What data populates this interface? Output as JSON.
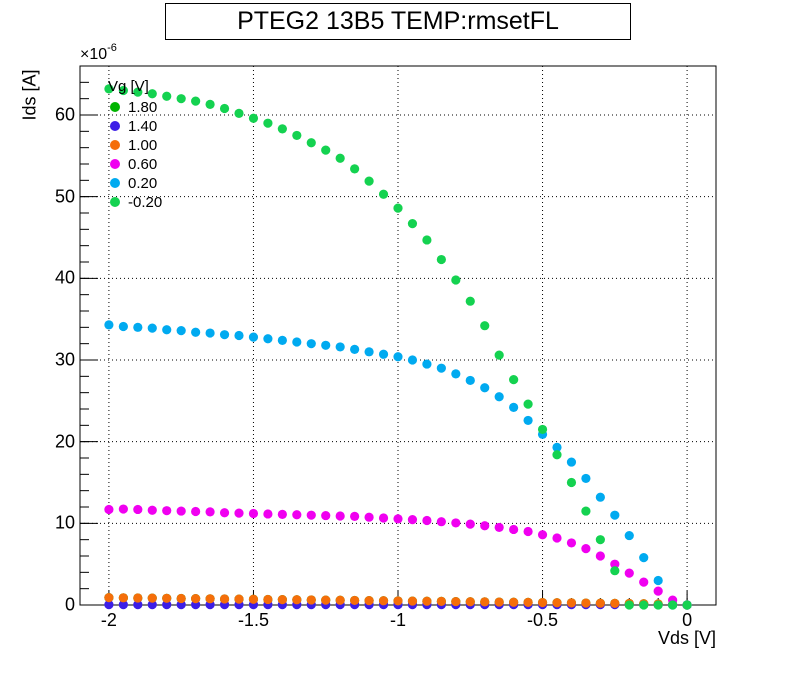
{
  "chart_data": {
    "type": "scatter",
    "title": "PTEG2 13B5 TEMP:rmsetFL",
    "xlabel": "Vds [V]",
    "ylabel": "Ids [A]",
    "y_exponent_base": "×10",
    "y_exponent_power": "-6",
    "xlim": [
      -2.1,
      0.1
    ],
    "ylim": [
      0,
      66
    ],
    "grid": true,
    "x_ticks": [
      "-2",
      "-1.5",
      "-1",
      "-0.5",
      "0"
    ],
    "y_ticks": [
      "0",
      "10",
      "20",
      "30",
      "40",
      "50",
      "60"
    ],
    "legend_position": "top-left",
    "legend_title": "Vg [V]",
    "series": [
      {
        "name": "1.80",
        "color": "#00b400",
        "x": [
          -2.0,
          -1.95,
          -1.9,
          -1.85,
          -1.8,
          -1.75,
          -1.7,
          -1.65,
          -1.6,
          -1.55,
          -1.5,
          -1.45,
          -1.4,
          -1.35,
          -1.3,
          -1.25,
          -1.2,
          -1.15,
          -1.1,
          -1.05,
          -1.0,
          -0.95,
          -0.9,
          -0.85,
          -0.8,
          -0.75,
          -0.7,
          -0.65,
          -0.6,
          -0.55,
          -0.5,
          -0.45,
          -0.4,
          -0.35,
          -0.3,
          -0.25,
          -0.2,
          -0.15,
          -0.1,
          -0.05,
          0.0
        ],
        "y": [
          0.9,
          0.88,
          0.86,
          0.84,
          0.82,
          0.8,
          0.78,
          0.76,
          0.74,
          0.72,
          0.7,
          0.68,
          0.66,
          0.64,
          0.62,
          0.6,
          0.58,
          0.56,
          0.54,
          0.52,
          0.5,
          0.48,
          0.46,
          0.44,
          0.42,
          0.4,
          0.38,
          0.36,
          0.34,
          0.32,
          0.3,
          0.28,
          0.26,
          0.24,
          0.22,
          0.2,
          0.18,
          0.16,
          0.12,
          0.06,
          0.0
        ]
      },
      {
        "name": "1.40",
        "color": "#3c1ee6",
        "x": [
          -2.0,
          -1.95,
          -1.9,
          -1.85,
          -1.8,
          -1.75,
          -1.7,
          -1.65,
          -1.6,
          -1.55,
          -1.5,
          -1.45,
          -1.4,
          -1.35,
          -1.3,
          -1.25,
          -1.2,
          -1.15,
          -1.1,
          -1.05,
          -1.0,
          -0.95,
          -0.9,
          -0.85,
          -0.8,
          -0.75,
          -0.7,
          -0.65,
          -0.6,
          -0.55,
          -0.5,
          -0.45,
          -0.4,
          -0.35,
          -0.3,
          -0.25,
          -0.2,
          -0.15,
          -0.1,
          -0.05,
          0.0
        ],
        "y": [
          0.05,
          0.05,
          0.05,
          0.05,
          0.05,
          0.05,
          0.05,
          0.05,
          0.05,
          0.05,
          0.05,
          0.05,
          0.05,
          0.05,
          0.05,
          0.05,
          0.05,
          0.05,
          0.05,
          0.05,
          0.05,
          0.05,
          0.05,
          0.05,
          0.05,
          0.05,
          0.05,
          0.05,
          0.05,
          0.05,
          0.05,
          0.05,
          0.05,
          0.05,
          0.05,
          0.05,
          0.05,
          0.05,
          0.05,
          0.05,
          0.0
        ]
      },
      {
        "name": "1.00",
        "color": "#f56e0a",
        "x": [
          -2.0,
          -1.95,
          -1.9,
          -1.85,
          -1.8,
          -1.75,
          -1.7,
          -1.65,
          -1.6,
          -1.55,
          -1.5,
          -1.45,
          -1.4,
          -1.35,
          -1.3,
          -1.25,
          -1.2,
          -1.15,
          -1.1,
          -1.05,
          -1.0,
          -0.95,
          -0.9,
          -0.85,
          -0.8,
          -0.75,
          -0.7,
          -0.65,
          -0.6,
          -0.55,
          -0.5,
          -0.45,
          -0.4,
          -0.35,
          -0.3,
          -0.25,
          -0.2,
          -0.15,
          -0.1,
          -0.05,
          0.0
        ],
        "y": [
          0.9,
          0.88,
          0.86,
          0.84,
          0.82,
          0.8,
          0.78,
          0.76,
          0.74,
          0.72,
          0.7,
          0.68,
          0.66,
          0.64,
          0.62,
          0.6,
          0.58,
          0.56,
          0.54,
          0.52,
          0.5,
          0.48,
          0.46,
          0.44,
          0.42,
          0.4,
          0.38,
          0.36,
          0.34,
          0.32,
          0.3,
          0.28,
          0.26,
          0.24,
          0.22,
          0.2,
          0.18,
          0.16,
          0.12,
          0.06,
          0.0
        ]
      },
      {
        "name": "0.60",
        "color": "#f000f0",
        "x": [
          -2.0,
          -1.95,
          -1.9,
          -1.85,
          -1.8,
          -1.75,
          -1.7,
          -1.65,
          -1.6,
          -1.55,
          -1.5,
          -1.45,
          -1.4,
          -1.35,
          -1.3,
          -1.25,
          -1.2,
          -1.15,
          -1.1,
          -1.05,
          -1.0,
          -0.95,
          -0.9,
          -0.85,
          -0.8,
          -0.75,
          -0.7,
          -0.65,
          -0.6,
          -0.55,
          -0.5,
          -0.45,
          -0.4,
          -0.35,
          -0.3,
          -0.25,
          -0.2,
          -0.15,
          -0.1,
          -0.05,
          0.0
        ],
        "y": [
          11.7,
          11.75,
          11.7,
          11.6,
          11.55,
          11.5,
          11.45,
          11.4,
          11.3,
          11.25,
          11.2,
          11.15,
          11.1,
          11.05,
          11.0,
          10.95,
          10.9,
          10.85,
          10.75,
          10.65,
          10.55,
          10.45,
          10.35,
          10.2,
          10.05,
          9.9,
          9.7,
          9.5,
          9.25,
          9.0,
          8.6,
          8.2,
          7.6,
          6.9,
          6.0,
          5.0,
          3.9,
          2.8,
          1.7,
          0.6,
          0.0
        ]
      },
      {
        "name": "0.20",
        "color": "#00aaf0",
        "x": [
          -2.0,
          -1.95,
          -1.9,
          -1.85,
          -1.8,
          -1.75,
          -1.7,
          -1.65,
          -1.6,
          -1.55,
          -1.5,
          -1.45,
          -1.4,
          -1.35,
          -1.3,
          -1.25,
          -1.2,
          -1.15,
          -1.1,
          -1.05,
          -1.0,
          -0.95,
          -0.9,
          -0.85,
          -0.8,
          -0.75,
          -0.7,
          -0.65,
          -0.6,
          -0.55,
          -0.5,
          -0.45,
          -0.4,
          -0.35,
          -0.3,
          -0.25,
          -0.2,
          -0.15,
          -0.1,
          -0.05,
          0.0
        ],
        "y": [
          34.3,
          34.1,
          34.0,
          33.9,
          33.7,
          33.6,
          33.4,
          33.3,
          33.1,
          33.0,
          32.8,
          32.6,
          32.4,
          32.2,
          32.0,
          31.8,
          31.6,
          31.3,
          31.0,
          30.7,
          30.4,
          30.0,
          29.5,
          29.0,
          28.3,
          27.5,
          26.6,
          25.5,
          24.2,
          22.6,
          20.9,
          19.3,
          17.5,
          15.5,
          13.2,
          11.0,
          8.5,
          5.8,
          3.0,
          0.0,
          0.0
        ]
      },
      {
        "name": "-0.20",
        "color": "#14d250",
        "x": [
          -2.0,
          -1.95,
          -1.9,
          -1.85,
          -1.8,
          -1.75,
          -1.7,
          -1.65,
          -1.6,
          -1.55,
          -1.5,
          -1.45,
          -1.4,
          -1.35,
          -1.3,
          -1.25,
          -1.2,
          -1.15,
          -1.1,
          -1.05,
          -1.0,
          -0.95,
          -0.9,
          -0.85,
          -0.8,
          -0.75,
          -0.7,
          -0.65,
          -0.6,
          -0.55,
          -0.5,
          -0.45,
          -0.4,
          -0.35,
          -0.3,
          -0.25,
          -0.2,
          -0.15,
          -0.1,
          -0.05,
          0.0
        ],
        "y": [
          63.2,
          63.0,
          62.8,
          62.6,
          62.3,
          62.0,
          61.7,
          61.3,
          60.8,
          60.2,
          59.6,
          59.0,
          58.3,
          57.5,
          56.6,
          55.7,
          54.7,
          53.4,
          51.9,
          50.3,
          48.6,
          46.7,
          44.7,
          42.3,
          39.8,
          37.2,
          34.2,
          30.6,
          27.6,
          24.6,
          21.5,
          18.4,
          15.0,
          11.5,
          8.0,
          4.2,
          0.0,
          0.0,
          0.0,
          0.0,
          0.0
        ]
      }
    ]
  }
}
